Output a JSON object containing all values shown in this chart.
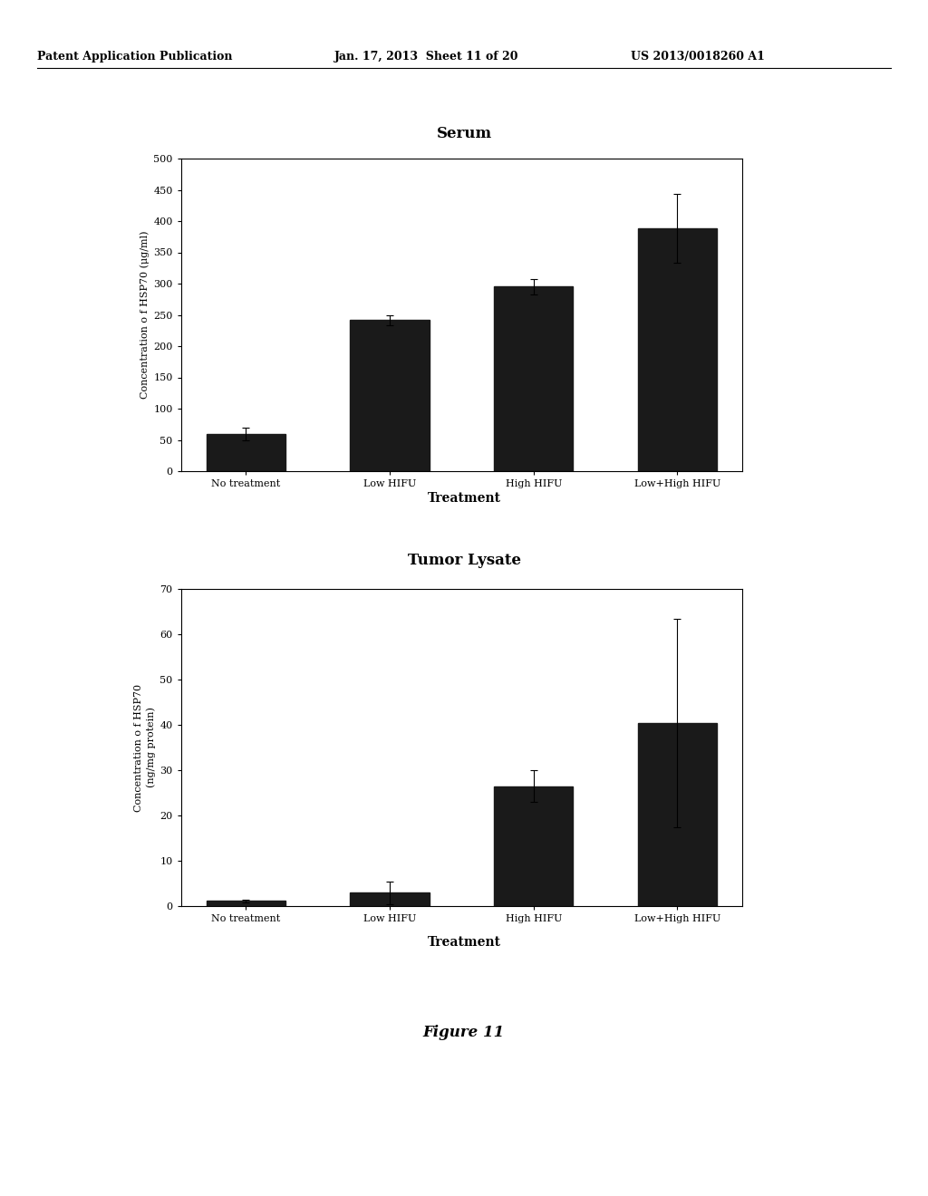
{
  "header_left": "Patent Application Publication",
  "header_mid": "Jan. 17, 2013  Sheet 11 of 20",
  "header_right": "US 2013/0018260 A1",
  "footer": "Figure 11",
  "serum": {
    "title": "Serum",
    "categories": [
      "No treatment",
      "Low HIFU",
      "High HIFU",
      "Low+High HIFU"
    ],
    "values": [
      60,
      242,
      295,
      388
    ],
    "errors": [
      10,
      8,
      12,
      55
    ],
    "ylabel": "Concentration o f HSP70 (μg/ml)",
    "xlabel": "Treatment",
    "ylim": [
      0,
      500
    ],
    "yticks": [
      0,
      50,
      100,
      150,
      200,
      250,
      300,
      350,
      400,
      450,
      500
    ],
    "bar_color": "#1a1a1a",
    "bar_width": 0.55
  },
  "tumor": {
    "title": "Tumor Lysate",
    "categories": [
      "No treatment",
      "Low HIFU",
      "High HIFU",
      "Low+High HIFU"
    ],
    "values": [
      1.2,
      3.0,
      26.5,
      40.5
    ],
    "errors": [
      0.3,
      2.5,
      3.5,
      23
    ],
    "ylabel_line1": "Concentration o f HSP70",
    "ylabel_line2": "(ng/mg protein)",
    "xlabel": "Treatment",
    "ylim": [
      0,
      70
    ],
    "yticks": [
      0,
      10,
      20,
      30,
      40,
      50,
      60,
      70
    ],
    "bar_color": "#1a1a1a",
    "bar_width": 0.55
  },
  "background": "#ffffff",
  "text_color": "#000000",
  "header_fontsize": 9,
  "title_fontsize": 12,
  "label_fontsize": 10,
  "tick_fontsize": 8,
  "axis_label_fontsize": 8,
  "footer_fontsize": 12
}
